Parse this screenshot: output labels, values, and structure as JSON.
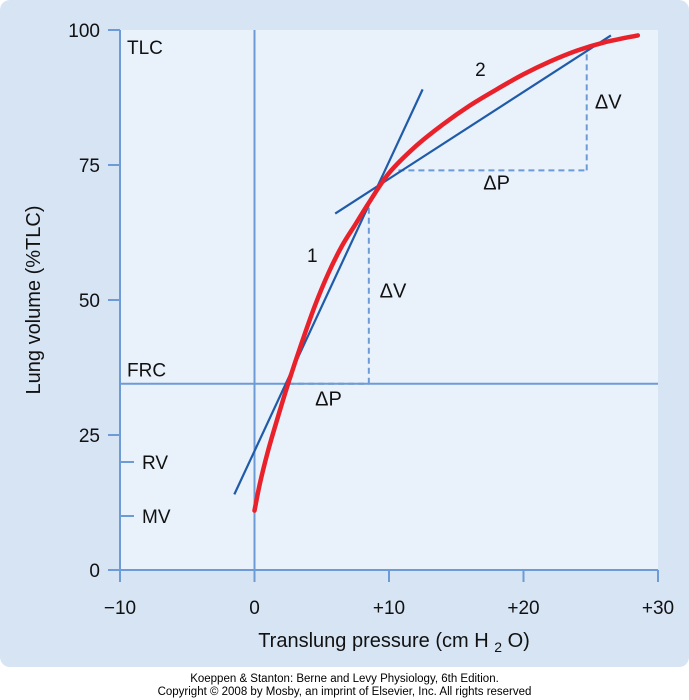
{
  "colors": {
    "panel_bg": "#d6e4f4",
    "plot_bg": "#e9f1fa",
    "grid_line": "#6d9bd6",
    "tangent_line": "#1f5ba8",
    "curve": "#e8212b",
    "text": "#111111"
  },
  "chart_data": {
    "type": "line",
    "xlabel_text": "Translung pressure (cm H",
    "xlabel_sub": "2",
    "xlabel_end": "O)",
    "ylabel": "Lung volume (%TLC)",
    "xlim": [
      -10,
      30
    ],
    "ylim": [
      0,
      100
    ],
    "x_ticks": [
      {
        "value": -10,
        "label": "−10"
      },
      {
        "value": 0,
        "label": "0"
      },
      {
        "value": 10,
        "label": "+10"
      },
      {
        "value": 20,
        "label": "+20"
      },
      {
        "value": 30,
        "label": "+30"
      }
    ],
    "y_ticks": [
      {
        "value": 0,
        "label": "0"
      },
      {
        "value": 25,
        "label": "25"
      },
      {
        "value": 50,
        "label": "50"
      },
      {
        "value": 75,
        "label": "75"
      },
      {
        "value": 100,
        "label": "100"
      }
    ],
    "reference_lines": {
      "zero_pressure_x": 0,
      "frc_y": 34.5
    },
    "level_labels": [
      {
        "label": "TLC",
        "y": 100
      },
      {
        "label": "FRC",
        "y": 34.5
      },
      {
        "label": "RV",
        "y": 20
      },
      {
        "label": "MV",
        "y": 10
      }
    ],
    "curve": {
      "x": [
        0,
        0.4,
        1,
        1.7,
        2.5,
        3.5,
        4.5,
        5.5,
        6.5,
        7.5,
        8.5,
        10,
        12,
        14,
        16,
        18,
        20,
        22,
        24,
        26,
        28.5
      ],
      "y": [
        11,
        16,
        22,
        28,
        34.5,
        42,
        49,
        55,
        60,
        64,
        68,
        73.5,
        78.5,
        82.5,
        86,
        89,
        91.8,
        94.2,
        96.2,
        97.7,
        99
      ]
    },
    "tangents": [
      {
        "label": "1",
        "x": [
          -1.5,
          12.5
        ],
        "y": [
          14,
          89
        ],
        "label_at": [
          4.3,
          57
        ]
      },
      {
        "label": "2",
        "x": [
          6,
          26.5
        ],
        "y": [
          66,
          99
        ],
        "label_at": [
          16.8,
          91.5
        ]
      }
    ],
    "deltas": [
      {
        "kind": "pressure",
        "label": "ΔP",
        "from": [
          2.5,
          34.5
        ],
        "to": [
          8.5,
          34.5
        ],
        "label_at": [
          5.5,
          30.5
        ]
      },
      {
        "kind": "volume",
        "label": "ΔV",
        "from": [
          8.5,
          34.5
        ],
        "to": [
          8.5,
          68
        ],
        "label_at": [
          10.3,
          50.5
        ]
      },
      {
        "kind": "pressure",
        "label": "ΔP",
        "from": [
          10.7,
          74
        ],
        "to": [
          24.7,
          74
        ],
        "label_at": [
          18,
          70.5
        ]
      },
      {
        "kind": "volume",
        "label": "ΔV",
        "from": [
          24.7,
          74
        ],
        "to": [
          24.7,
          96
        ],
        "label_at": [
          26.3,
          85.5
        ]
      }
    ]
  },
  "footer": {
    "line1": "Koeppen & Stanton: Berne and Levy Physiology, 6th Edition.",
    "line2": "Copyright © 2008 by Mosby, an imprint of Elsevier, Inc. All rights reserved"
  }
}
